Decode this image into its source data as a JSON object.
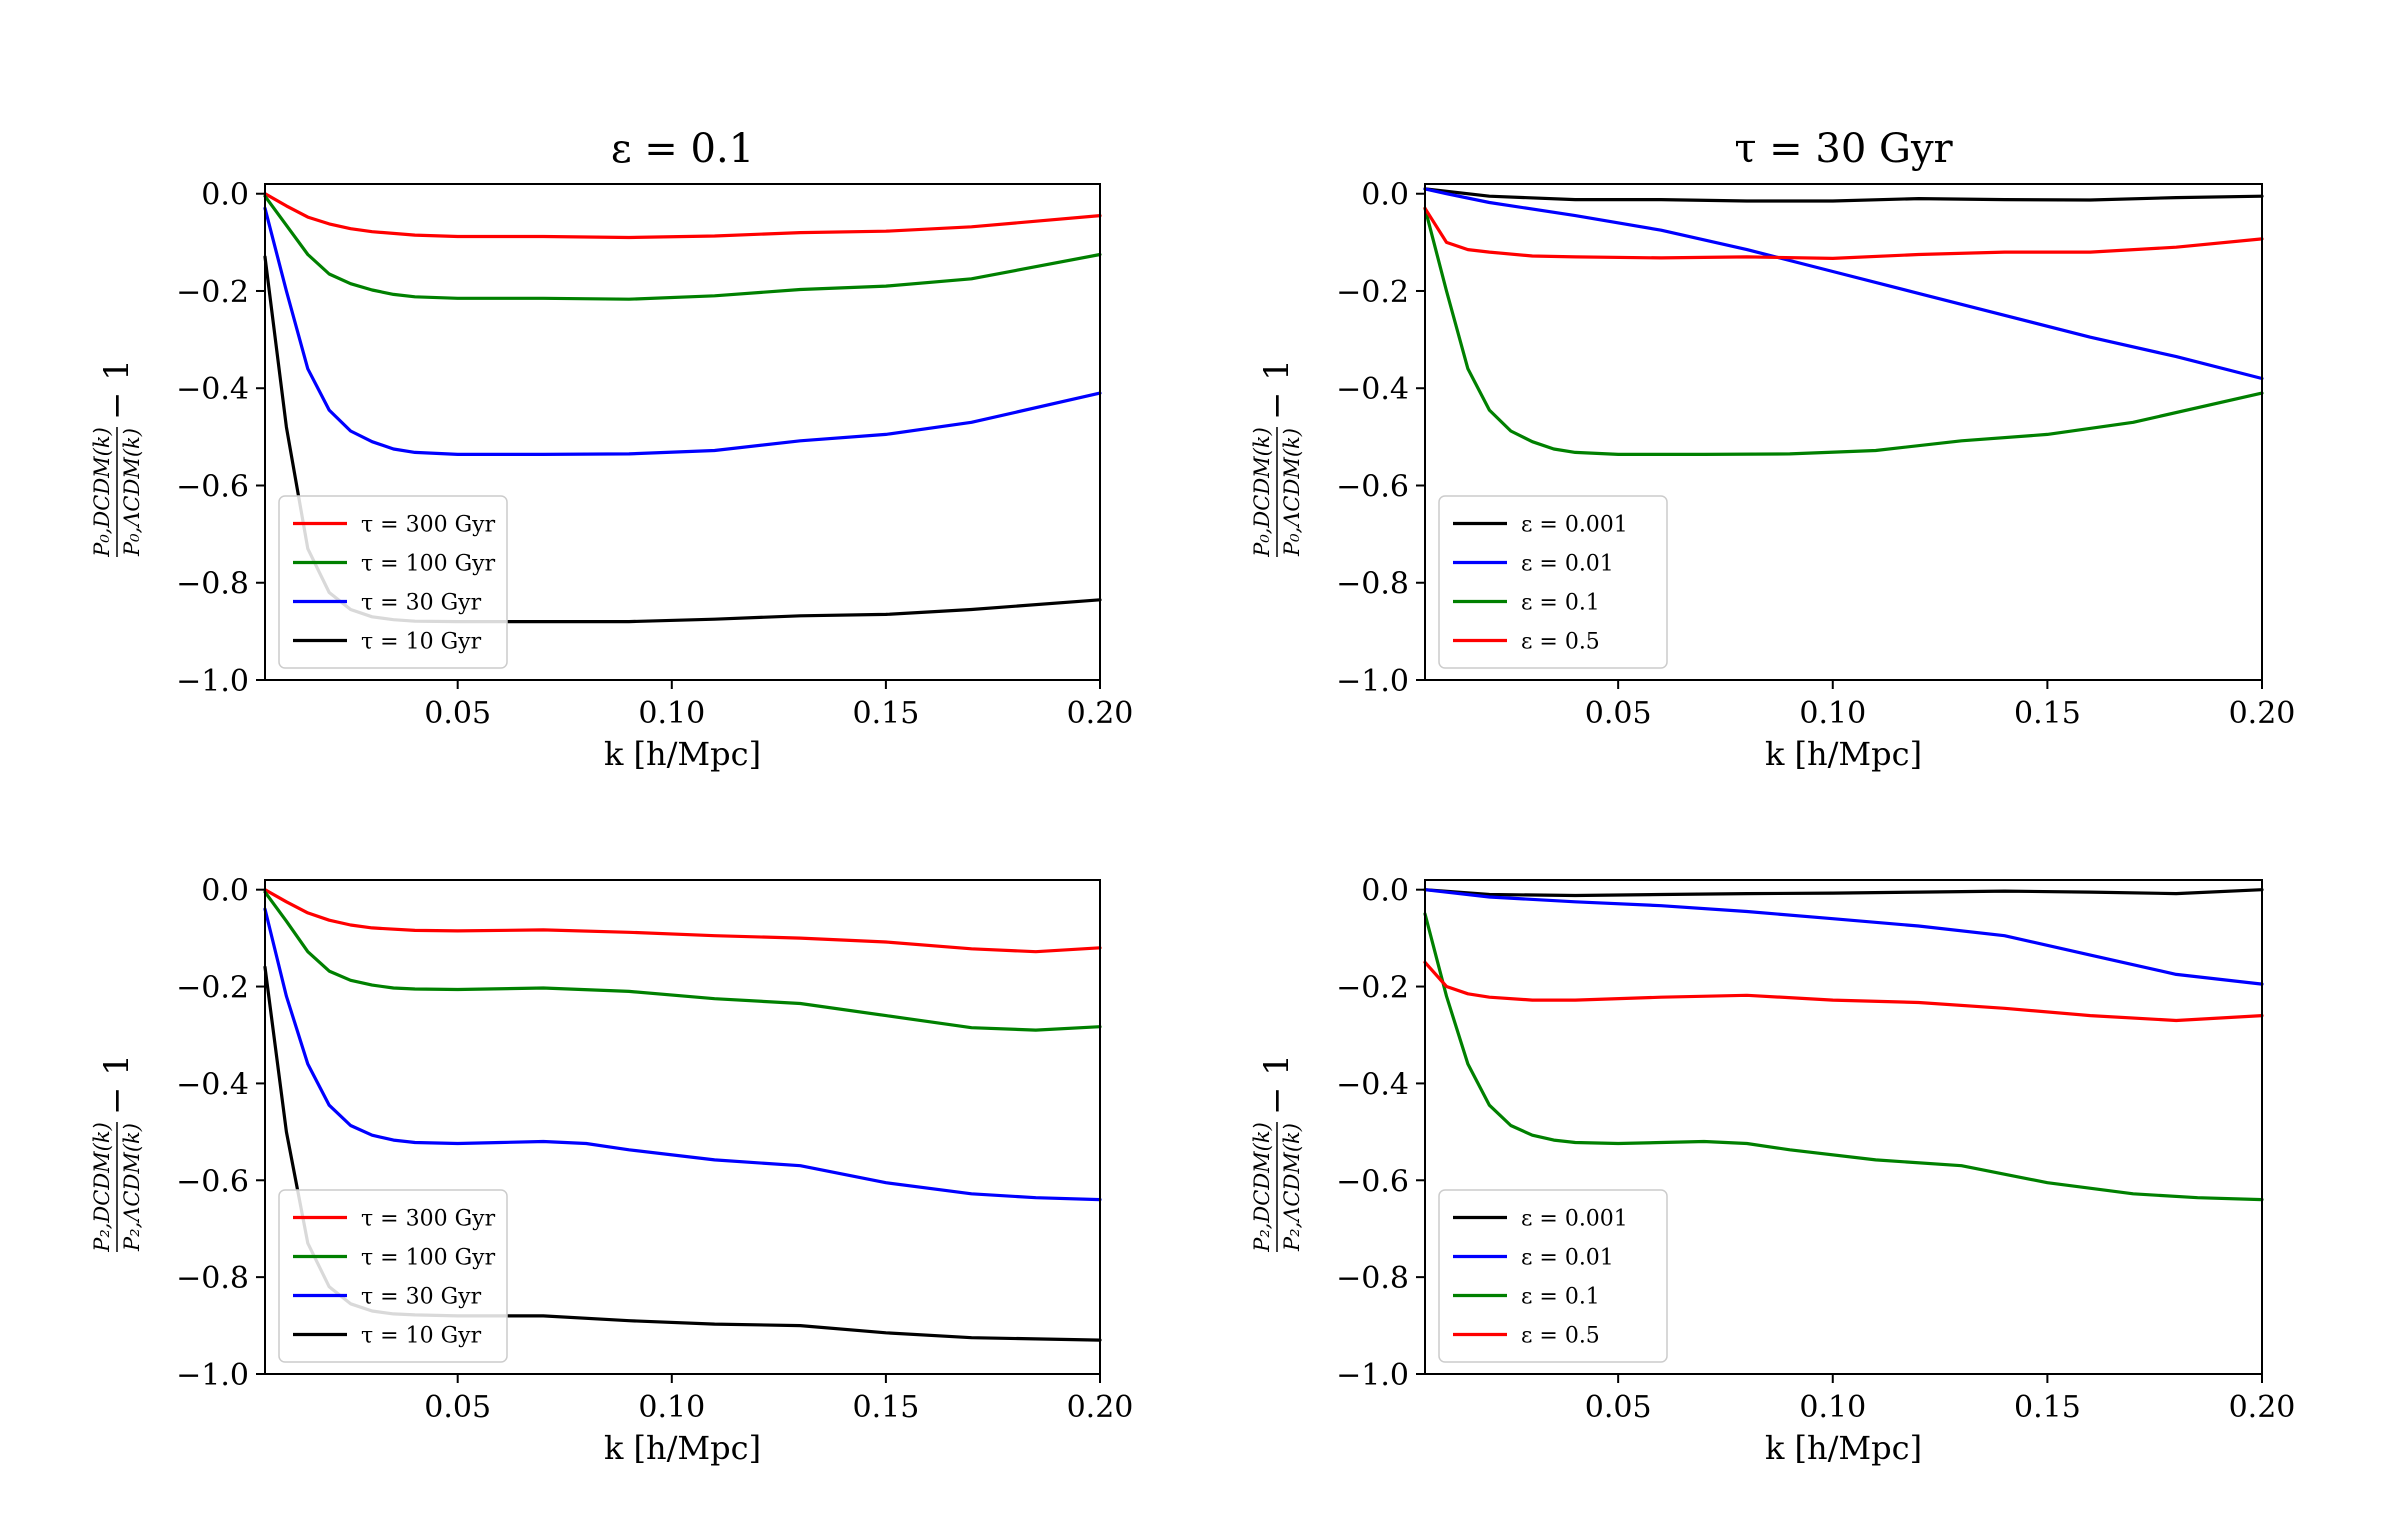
{
  "chart_data": [
    {
      "type": "line",
      "title": "ε = 0.1",
      "xlabel": "k [h/Mpc]",
      "ylabel": {
        "num": "P₀,DCDM(k)",
        "den": "P₀,ΛCDM(k)",
        "tail": "− 1"
      },
      "xlim": [
        0.005,
        0.2
      ],
      "ylim": [
        -1.0,
        0.02
      ],
      "xticks": [
        0.05,
        0.1,
        0.15,
        0.2
      ],
      "xtick_labels": [
        "0.05",
        "0.10",
        "0.15",
        "0.20"
      ],
      "yticks": [
        0.0,
        -0.2,
        -0.4,
        -0.6,
        -0.8,
        -1.0
      ],
      "ytick_labels": [
        "0.0",
        "−0.2",
        "−0.4",
        "−0.6",
        "−0.8",
        "−1.0"
      ],
      "legend_position": "lower-left",
      "series": [
        {
          "name": "τ = 300 Gyr",
          "color": "#ff0000",
          "x": [
            0.005,
            0.01,
            0.015,
            0.02,
            0.025,
            0.03,
            0.04,
            0.05,
            0.07,
            0.09,
            0.11,
            0.13,
            0.15,
            0.17,
            0.2
          ],
          "y": [
            0,
            -0.025,
            -0.048,
            -0.062,
            -0.072,
            -0.078,
            -0.085,
            -0.088,
            -0.088,
            -0.09,
            -0.087,
            -0.08,
            -0.077,
            -0.068,
            -0.045
          ]
        },
        {
          "name": "τ = 100 Gyr",
          "color": "#008000",
          "x": [
            0.005,
            0.01,
            0.015,
            0.02,
            0.025,
            0.03,
            0.035,
            0.04,
            0.05,
            0.07,
            0.09,
            0.11,
            0.13,
            0.15,
            0.17,
            0.2
          ],
          "y": [
            -0.005,
            -0.065,
            -0.125,
            -0.165,
            -0.185,
            -0.198,
            -0.207,
            -0.212,
            -0.215,
            -0.215,
            -0.217,
            -0.21,
            -0.197,
            -0.19,
            -0.175,
            -0.125
          ]
        },
        {
          "name": "τ = 30 Gyr",
          "color": "#0000ff",
          "x": [
            0.005,
            0.01,
            0.015,
            0.02,
            0.025,
            0.03,
            0.035,
            0.04,
            0.05,
            0.07,
            0.09,
            0.11,
            0.13,
            0.15,
            0.17,
            0.2
          ],
          "y": [
            -0.03,
            -0.2,
            -0.36,
            -0.445,
            -0.488,
            -0.51,
            -0.525,
            -0.532,
            -0.536,
            -0.536,
            -0.535,
            -0.528,
            -0.508,
            -0.495,
            -0.47,
            -0.41
          ]
        },
        {
          "name": "τ = 10 Gyr",
          "color": "#000000",
          "x": [
            0.005,
            0.01,
            0.015,
            0.02,
            0.025,
            0.03,
            0.035,
            0.04,
            0.05,
            0.07,
            0.09,
            0.11,
            0.13,
            0.15,
            0.17,
            0.2
          ],
          "y": [
            -0.13,
            -0.48,
            -0.73,
            -0.82,
            -0.855,
            -0.87,
            -0.876,
            -0.879,
            -0.88,
            -0.88,
            -0.88,
            -0.875,
            -0.868,
            -0.865,
            -0.855,
            -0.835
          ]
        }
      ]
    },
    {
      "type": "line",
      "title": "τ = 30 Gyr",
      "xlabel": "k [h/Mpc]",
      "ylabel": {
        "num": "P₀,DCDM(k)",
        "den": "P₀,ΛCDM(k)",
        "tail": "− 1"
      },
      "xlim": [
        0.005,
        0.2
      ],
      "ylim": [
        -1.0,
        0.02
      ],
      "xticks": [
        0.05,
        0.1,
        0.15,
        0.2
      ],
      "xtick_labels": [
        "0.05",
        "0.10",
        "0.15",
        "0.20"
      ],
      "yticks": [
        0.0,
        -0.2,
        -0.4,
        -0.6,
        -0.8,
        -1.0
      ],
      "ytick_labels": [
        "0.0",
        "−0.2",
        "−0.4",
        "−0.6",
        "−0.8",
        "−1.0"
      ],
      "legend_position": "lower-left",
      "series": [
        {
          "name": "ε = 0.001",
          "color": "#000000",
          "x": [
            0.005,
            0.02,
            0.04,
            0.06,
            0.08,
            0.1,
            0.12,
            0.14,
            0.16,
            0.18,
            0.2
          ],
          "y": [
            0.01,
            -0.005,
            -0.012,
            -0.012,
            -0.015,
            -0.015,
            -0.01,
            -0.012,
            -0.013,
            -0.008,
            -0.005
          ]
        },
        {
          "name": "ε = 0.01",
          "color": "#0000ff",
          "x": [
            0.005,
            0.01,
            0.02,
            0.04,
            0.06,
            0.08,
            0.1,
            0.12,
            0.14,
            0.16,
            0.18,
            0.2
          ],
          "y": [
            0.01,
            0.0,
            -0.018,
            -0.045,
            -0.075,
            -0.115,
            -0.16,
            -0.205,
            -0.25,
            -0.295,
            -0.335,
            -0.38
          ]
        },
        {
          "name": "ε = 0.1",
          "color": "#008000",
          "x": [
            0.005,
            0.01,
            0.015,
            0.02,
            0.025,
            0.03,
            0.035,
            0.04,
            0.05,
            0.07,
            0.09,
            0.11,
            0.13,
            0.15,
            0.17,
            0.2
          ],
          "y": [
            -0.03,
            -0.2,
            -0.36,
            -0.445,
            -0.488,
            -0.51,
            -0.525,
            -0.532,
            -0.536,
            -0.536,
            -0.535,
            -0.528,
            -0.508,
            -0.495,
            -0.47,
            -0.41
          ]
        },
        {
          "name": "ε = 0.5",
          "color": "#ff0000",
          "x": [
            0.005,
            0.01,
            0.015,
            0.02,
            0.03,
            0.04,
            0.06,
            0.08,
            0.1,
            0.12,
            0.14,
            0.16,
            0.18,
            0.2
          ],
          "y": [
            -0.03,
            -0.1,
            -0.115,
            -0.12,
            -0.128,
            -0.13,
            -0.132,
            -0.13,
            -0.133,
            -0.125,
            -0.12,
            -0.12,
            -0.11,
            -0.093
          ]
        }
      ]
    },
    {
      "type": "line",
      "title": "",
      "xlabel": "k [h/Mpc]",
      "ylabel": {
        "num": "P₂,DCDM(k)",
        "den": "P₂,ΛCDM(k)",
        "tail": "− 1"
      },
      "xlim": [
        0.005,
        0.2
      ],
      "ylim": [
        -1.0,
        0.02
      ],
      "xticks": [
        0.05,
        0.1,
        0.15,
        0.2
      ],
      "xtick_labels": [
        "0.05",
        "0.10",
        "0.15",
        "0.20"
      ],
      "yticks": [
        0.0,
        -0.2,
        -0.4,
        -0.6,
        -0.8,
        -1.0
      ],
      "ytick_labels": [
        "0.0",
        "−0.2",
        "−0.4",
        "−0.6",
        "−0.8",
        "−1.0"
      ],
      "legend_position": "lower-left",
      "series": [
        {
          "name": "τ = 300 Gyr",
          "color": "#ff0000",
          "x": [
            0.005,
            0.01,
            0.015,
            0.02,
            0.025,
            0.03,
            0.04,
            0.05,
            0.07,
            0.09,
            0.11,
            0.13,
            0.15,
            0.17,
            0.185,
            0.2
          ],
          "y": [
            0,
            -0.025,
            -0.048,
            -0.063,
            -0.073,
            -0.079,
            -0.084,
            -0.085,
            -0.083,
            -0.088,
            -0.095,
            -0.1,
            -0.108,
            -0.122,
            -0.128,
            -0.12
          ]
        },
        {
          "name": "τ = 100 Gyr",
          "color": "#008000",
          "x": [
            0.005,
            0.01,
            0.015,
            0.02,
            0.025,
            0.03,
            0.035,
            0.04,
            0.05,
            0.07,
            0.09,
            0.11,
            0.13,
            0.15,
            0.17,
            0.185,
            0.2
          ],
          "y": [
            -0.005,
            -0.065,
            -0.128,
            -0.168,
            -0.187,
            -0.197,
            -0.203,
            -0.205,
            -0.206,
            -0.203,
            -0.21,
            -0.225,
            -0.235,
            -0.26,
            -0.285,
            -0.29,
            -0.283
          ]
        },
        {
          "name": "τ = 30 Gyr",
          "color": "#0000ff",
          "x": [
            0.005,
            0.01,
            0.015,
            0.02,
            0.025,
            0.03,
            0.035,
            0.04,
            0.05,
            0.06,
            0.07,
            0.08,
            0.09,
            0.11,
            0.13,
            0.15,
            0.17,
            0.185,
            0.2
          ],
          "y": [
            -0.04,
            -0.22,
            -0.36,
            -0.445,
            -0.487,
            -0.507,
            -0.517,
            -0.522,
            -0.524,
            -0.522,
            -0.52,
            -0.524,
            -0.537,
            -0.558,
            -0.57,
            -0.605,
            -0.628,
            -0.636,
            -0.64
          ]
        },
        {
          "name": "τ = 10 Gyr",
          "color": "#000000",
          "x": [
            0.005,
            0.01,
            0.015,
            0.02,
            0.025,
            0.03,
            0.035,
            0.04,
            0.05,
            0.07,
            0.09,
            0.11,
            0.13,
            0.15,
            0.17,
            0.2
          ],
          "y": [
            -0.16,
            -0.5,
            -0.73,
            -0.82,
            -0.855,
            -0.87,
            -0.876,
            -0.878,
            -0.88,
            -0.88,
            -0.89,
            -0.897,
            -0.9,
            -0.915,
            -0.925,
            -0.93
          ]
        }
      ]
    },
    {
      "type": "line",
      "title": "",
      "xlabel": "k [h/Mpc]",
      "ylabel": {
        "num": "P₂,DCDM(k)",
        "den": "P₂,ΛCDM(k)",
        "tail": "− 1"
      },
      "xlim": [
        0.005,
        0.2
      ],
      "ylim": [
        -1.0,
        0.02
      ],
      "xticks": [
        0.05,
        0.1,
        0.15,
        0.2
      ],
      "xtick_labels": [
        "0.05",
        "0.10",
        "0.15",
        "0.20"
      ],
      "yticks": [
        0.0,
        -0.2,
        -0.4,
        -0.6,
        -0.8,
        -1.0
      ],
      "ytick_labels": [
        "0.0",
        "−0.2",
        "−0.4",
        "−0.6",
        "−0.8",
        "−1.0"
      ],
      "legend_position": "lower-left",
      "series": [
        {
          "name": "ε = 0.001",
          "color": "#000000",
          "x": [
            0.005,
            0.02,
            0.04,
            0.06,
            0.08,
            0.1,
            0.12,
            0.14,
            0.16,
            0.18,
            0.2
          ],
          "y": [
            0.0,
            -0.01,
            -0.012,
            -0.01,
            -0.008,
            -0.007,
            -0.005,
            -0.003,
            -0.005,
            -0.008,
            0.0
          ]
        },
        {
          "name": "ε = 0.01",
          "color": "#0000ff",
          "x": [
            0.005,
            0.02,
            0.04,
            0.06,
            0.08,
            0.1,
            0.12,
            0.14,
            0.16,
            0.18,
            0.2
          ],
          "y": [
            0.0,
            -0.015,
            -0.025,
            -0.033,
            -0.045,
            -0.06,
            -0.075,
            -0.095,
            -0.135,
            -0.175,
            -0.195
          ]
        },
        {
          "name": "ε = 0.1",
          "color": "#008000",
          "x": [
            0.005,
            0.01,
            0.015,
            0.02,
            0.025,
            0.03,
            0.035,
            0.04,
            0.05,
            0.06,
            0.07,
            0.08,
            0.09,
            0.11,
            0.13,
            0.15,
            0.17,
            0.185,
            0.2
          ],
          "y": [
            -0.05,
            -0.22,
            -0.36,
            -0.445,
            -0.487,
            -0.507,
            -0.517,
            -0.522,
            -0.524,
            -0.522,
            -0.52,
            -0.524,
            -0.537,
            -0.558,
            -0.57,
            -0.605,
            -0.628,
            -0.636,
            -0.64
          ]
        },
        {
          "name": "ε = 0.5",
          "color": "#ff0000",
          "x": [
            0.005,
            0.01,
            0.015,
            0.02,
            0.03,
            0.04,
            0.06,
            0.08,
            0.1,
            0.12,
            0.14,
            0.16,
            0.18,
            0.2
          ],
          "y": [
            -0.15,
            -0.2,
            -0.215,
            -0.222,
            -0.228,
            -0.228,
            -0.222,
            -0.218,
            -0.228,
            -0.233,
            -0.245,
            -0.26,
            -0.27,
            -0.26
          ]
        }
      ]
    }
  ]
}
